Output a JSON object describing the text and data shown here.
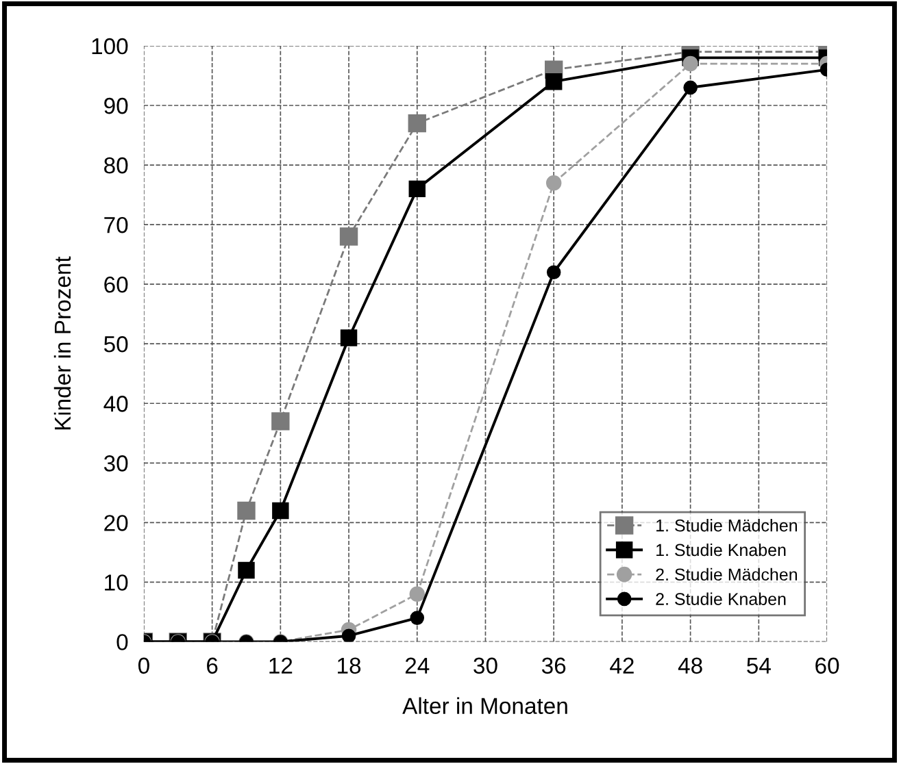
{
  "chart_data": {
    "type": "line",
    "xlabel": "Alter in Monaten",
    "ylabel": "Kinder in Prozent",
    "x": [
      0,
      3,
      6,
      9,
      12,
      18,
      24,
      36,
      48,
      60
    ],
    "series": [
      {
        "name": "1. Studie Mädchen",
        "color": "#7a7a7a",
        "marker": "square",
        "line_style": "dashed",
        "values": [
          0,
          0,
          0,
          22,
          37,
          68,
          87,
          96,
          99,
          99
        ]
      },
      {
        "name": "1. Studie Knaben",
        "color": "#000000",
        "marker": "square",
        "line_style": "solid",
        "values": [
          0,
          0,
          0,
          12,
          22,
          51,
          76,
          94,
          98,
          98
        ]
      },
      {
        "name": "2. Studie Mädchen",
        "color": "#a0a0a0",
        "marker": "circle",
        "line_style": "dashed",
        "values": [
          0,
          0,
          0,
          0,
          0,
          2,
          8,
          77,
          97,
          97
        ]
      },
      {
        "name": "2. Studie Knaben",
        "color": "#000000",
        "marker": "circle",
        "line_style": "solid",
        "values": [
          0,
          0,
          0,
          0,
          0,
          1,
          4,
          62,
          93,
          96
        ]
      }
    ],
    "xlim": [
      0,
      60
    ],
    "xticks": [
      0,
      6,
      12,
      18,
      24,
      30,
      36,
      42,
      48,
      54,
      60
    ],
    "ylim": [
      0,
      100
    ],
    "yticks": [
      0,
      10,
      20,
      30,
      40,
      50,
      60,
      70,
      80,
      90,
      100
    ],
    "grid": true,
    "legend": "bottom right"
  }
}
